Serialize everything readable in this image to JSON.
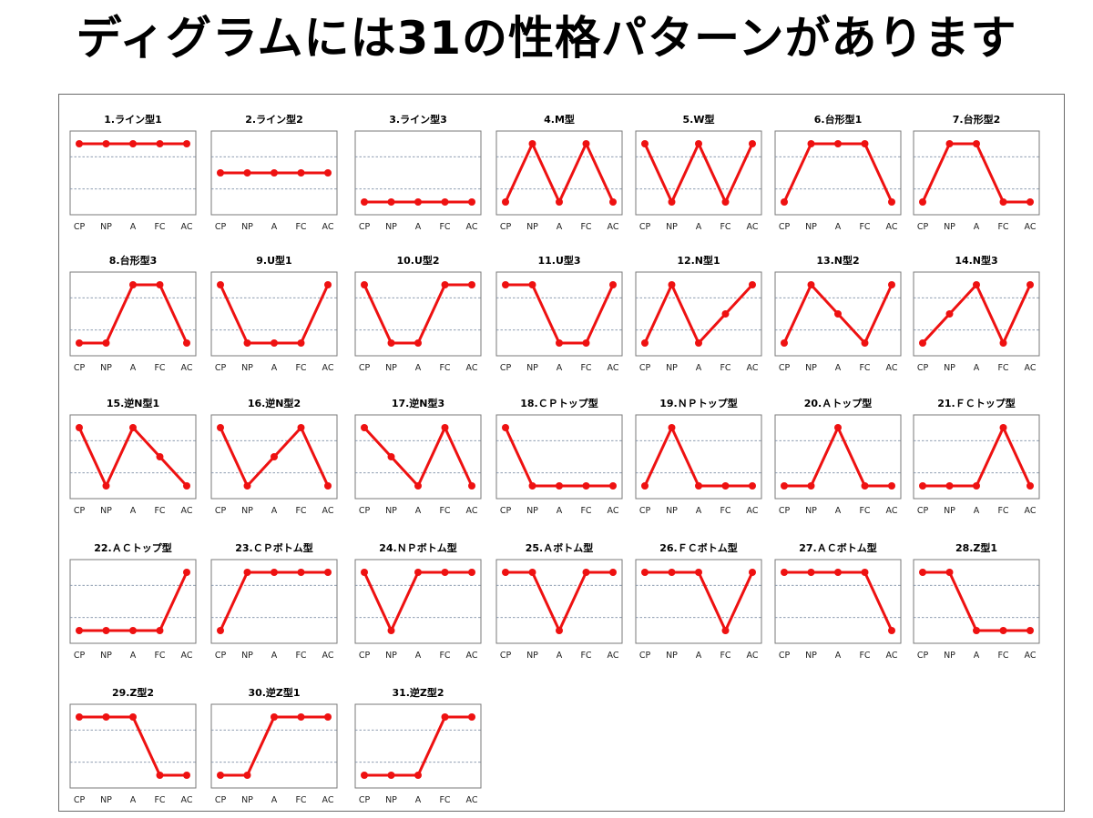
{
  "title": "ディグラムには31の性格パターンがあります",
  "chart_data": {
    "type": "line",
    "categories": [
      "CP",
      "NP",
      "A",
      "FC",
      "AC"
    ],
    "ylim": [
      0,
      2
    ],
    "grid": "dashed horizontal lines",
    "line_color": "#ee1111",
    "charts": [
      {
        "title": "1.ライン型1",
        "values": [
          2,
          2,
          2,
          2,
          2
        ]
      },
      {
        "title": "2.ライン型2",
        "values": [
          1,
          1,
          1,
          1,
          1
        ]
      },
      {
        "title": "3.ライン型3",
        "values": [
          0,
          0,
          0,
          0,
          0
        ]
      },
      {
        "title": "4.M型",
        "values": [
          0,
          2,
          0,
          2,
          0
        ]
      },
      {
        "title": "5.W型",
        "values": [
          2,
          0,
          2,
          0,
          2
        ]
      },
      {
        "title": "6.台形型1",
        "values": [
          0,
          2,
          2,
          2,
          0
        ]
      },
      {
        "title": "7.台形型2",
        "values": [
          0,
          2,
          2,
          0,
          0
        ]
      },
      {
        "title": "8.台形型3",
        "values": [
          0,
          0,
          2,
          2,
          0
        ]
      },
      {
        "title": "9.U型1",
        "values": [
          2,
          0,
          0,
          0,
          2
        ]
      },
      {
        "title": "10.U型2",
        "values": [
          2,
          0,
          0,
          2,
          2
        ]
      },
      {
        "title": "11.U型3",
        "values": [
          2,
          2,
          0,
          0,
          2
        ]
      },
      {
        "title": "12.N型1",
        "values": [
          0,
          2,
          0,
          1,
          2
        ]
      },
      {
        "title": "13.N型2",
        "values": [
          0,
          2,
          1,
          0,
          2
        ]
      },
      {
        "title": "14.N型3",
        "values": [
          0,
          1,
          2,
          0,
          2
        ]
      },
      {
        "title": "15.逆N型1",
        "values": [
          2,
          0,
          2,
          1,
          0
        ]
      },
      {
        "title": "16.逆N型2",
        "values": [
          2,
          0,
          1,
          2,
          0
        ]
      },
      {
        "title": "17.逆N型3",
        "values": [
          2,
          1,
          0,
          2,
          0
        ]
      },
      {
        "title": "18.ＣＰトップ型",
        "values": [
          2,
          0,
          0,
          0,
          0
        ]
      },
      {
        "title": "19.ＮＰトップ型",
        "values": [
          0,
          2,
          0,
          0,
          0
        ]
      },
      {
        "title": "20.Ａトップ型",
        "values": [
          0,
          0,
          2,
          0,
          0
        ]
      },
      {
        "title": "21.ＦＣトップ型",
        "values": [
          0,
          0,
          0,
          2,
          0
        ]
      },
      {
        "title": "22.ＡＣトップ型",
        "values": [
          0,
          0,
          0,
          0,
          2
        ]
      },
      {
        "title": "23.ＣＰボトム型",
        "values": [
          0,
          2,
          2,
          2,
          2
        ]
      },
      {
        "title": "24.ＮＰボトム型",
        "values": [
          2,
          0,
          2,
          2,
          2
        ]
      },
      {
        "title": "25.Ａボトム型",
        "values": [
          2,
          2,
          0,
          2,
          2
        ]
      },
      {
        "title": "26.ＦＣボトム型",
        "values": [
          2,
          2,
          2,
          0,
          2
        ]
      },
      {
        "title": "27.ＡＣボトム型",
        "values": [
          2,
          2,
          2,
          2,
          0
        ]
      },
      {
        "title": "28.Z型1",
        "values": [
          2,
          2,
          0,
          0,
          0
        ]
      },
      {
        "title": "29.Z型2",
        "values": [
          2,
          2,
          2,
          0,
          0
        ]
      },
      {
        "title": "30.逆Z型1",
        "values": [
          0,
          0,
          2,
          2,
          2
        ]
      },
      {
        "title": "31.逆Z型2",
        "values": [
          0,
          0,
          0,
          2,
          2
        ]
      }
    ]
  }
}
